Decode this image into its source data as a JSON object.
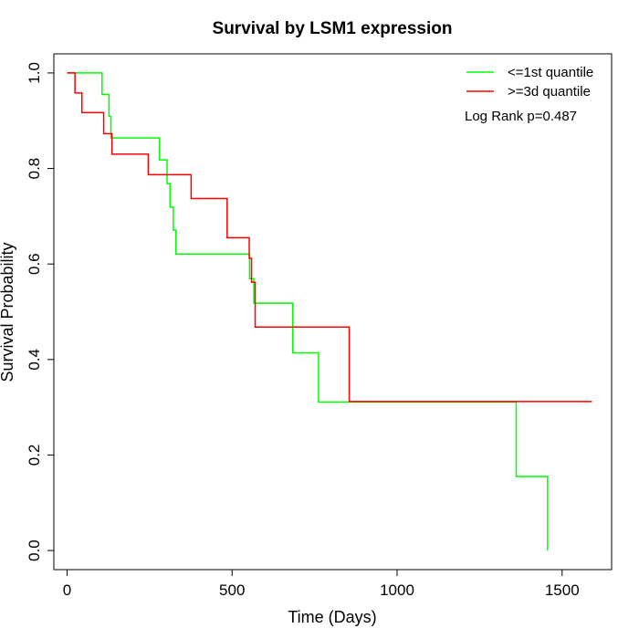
{
  "chart_data": {
    "type": "line",
    "step": true,
    "title": "Survival by LSM1 expression",
    "xlabel": "Time (Days)",
    "ylabel": "Survival Probability",
    "xlim": [
      -40,
      1650
    ],
    "ylim": [
      -0.04,
      1.04
    ],
    "xticks": [
      0,
      500,
      1000,
      1500
    ],
    "yticks": [
      0.0,
      0.2,
      0.4,
      0.6,
      0.8,
      1.0
    ],
    "xtick_labels": [
      "0",
      "500",
      "1000",
      "1500"
    ],
    "ytick_labels": [
      "0.0",
      "0.2",
      "0.4",
      "0.6",
      "0.8",
      "1.0"
    ],
    "grid": false,
    "legend_position": "top-right",
    "annotation": "Log Rank p=0.487",
    "series": [
      {
        "name": "<=1st quantile",
        "color": "#00ff00",
        "x": [
          0,
          106,
          127,
          133,
          280,
          303,
          312,
          322,
          330,
          349,
          553,
          566,
          684,
          762,
          1361,
          1456
        ],
        "y": [
          1.0,
          0.955,
          0.909,
          0.864,
          0.818,
          0.768,
          0.719,
          0.671,
          0.621,
          0.621,
          0.569,
          0.518,
          0.414,
          0.311,
          0.155,
          0.0
        ]
      },
      {
        "name": ">=3d quantile",
        "color": "#ff0000",
        "x": [
          0,
          24,
          45,
          111,
          136,
          246,
          376,
          485,
          552,
          559,
          570,
          855,
          1590
        ],
        "y": [
          1.0,
          0.958,
          0.917,
          0.873,
          0.83,
          0.787,
          0.737,
          0.655,
          0.612,
          0.562,
          0.468,
          0.312,
          0.312
        ]
      }
    ]
  }
}
